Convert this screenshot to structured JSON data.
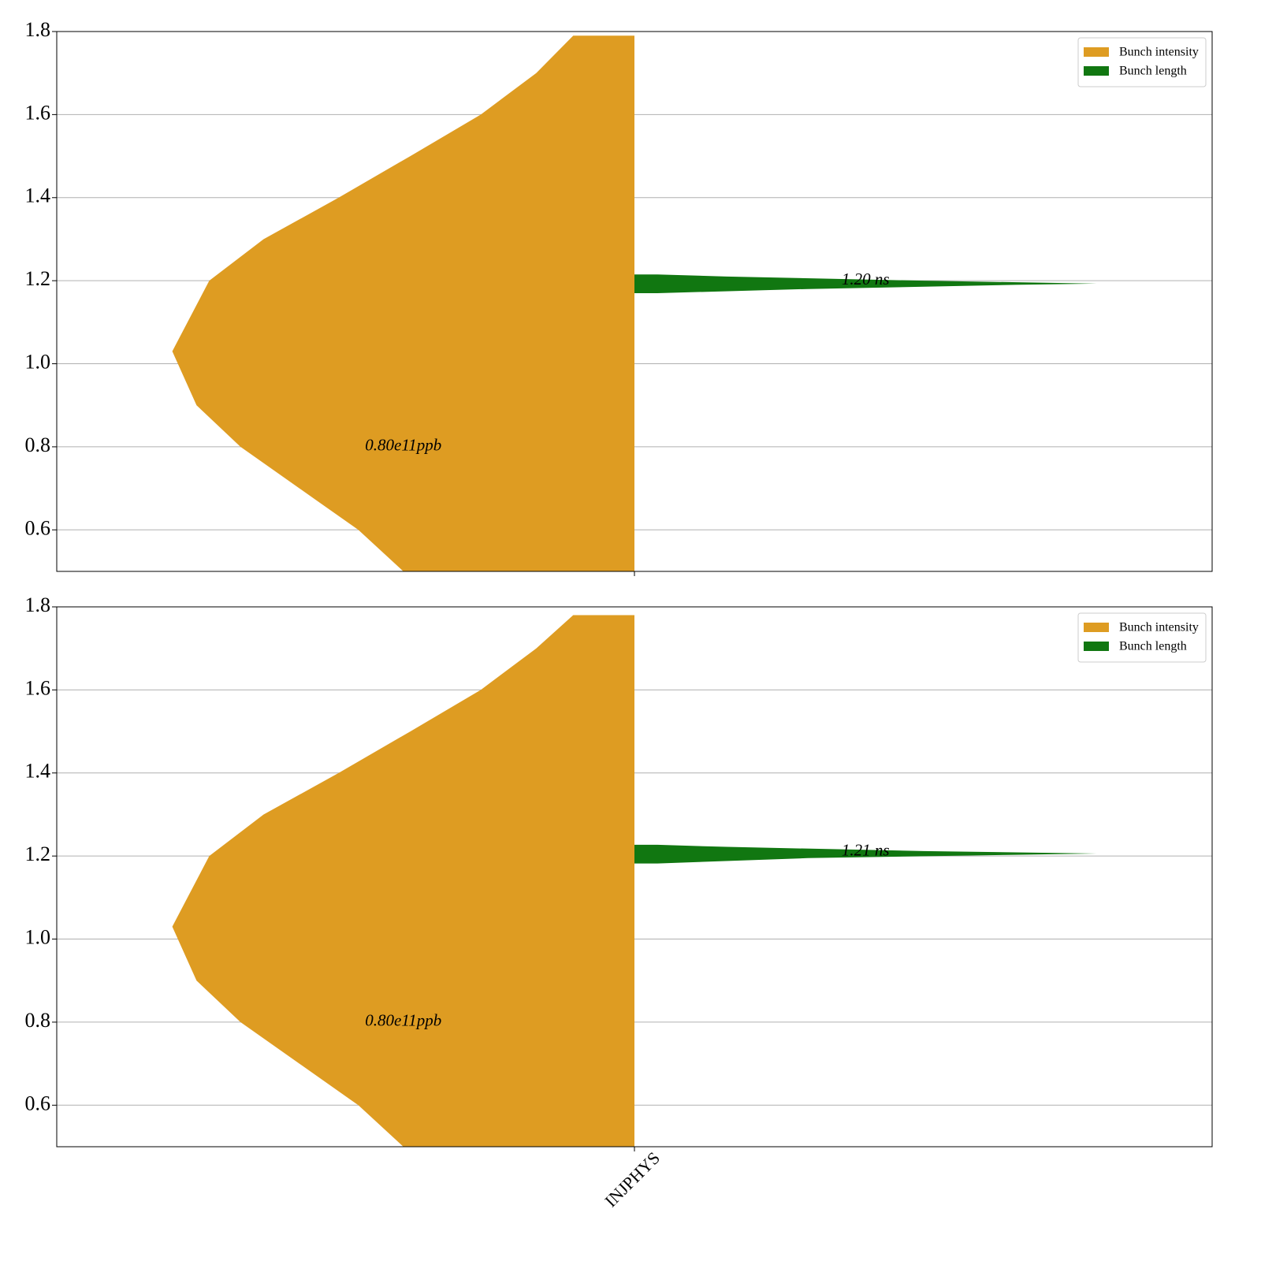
{
  "chart_data": [
    {
      "type": "violin",
      "categories": [
        null
      ],
      "xlim": [
        -0.5,
        0.5
      ],
      "ylim": [
        0.5,
        1.8
      ],
      "yticks": [
        0.6,
        0.8,
        {
          "value": 1,
          "label": "1.0"
        },
        1.2,
        1.4,
        1.6,
        1.8
      ],
      "grid": "y",
      "legend": "upper right",
      "series": [
        {
          "name": "Bunch intensity",
          "color": "#de9c22",
          "side": "left",
          "y": [
            0.5,
            0.6,
            0.8,
            0.9,
            1.03,
            1.2,
            1.3,
            1.4,
            1.5,
            1.6,
            1.7,
            1.79
          ],
          "width": [
            0.2,
            0.239,
            0.341,
            0.379,
            0.4,
            0.368,
            0.321,
            0.256,
            0.194,
            0.133,
            0.085,
            0.053
          ],
          "annotation": {
            "text": "0.80e11ppb",
            "value": 0.8
          }
        },
        {
          "name": "Bunch length",
          "color": "#117711",
          "side": "right",
          "y": [
            1.17,
            1.18,
            1.19,
            1.193,
            1.2,
            1.21,
            1.215
          ],
          "width": [
            0.02,
            0.15,
            0.33,
            0.4,
            0.25,
            0.08,
            0.02
          ],
          "annotation": {
            "text": "1.20 ns",
            "value": 1.2
          }
        }
      ]
    },
    {
      "type": "violin",
      "categories": [
        "INJPHYS"
      ],
      "xlim": [
        -0.5,
        0.5
      ],
      "ylim": [
        0.5,
        1.8
      ],
      "yticks": [
        0.6,
        0.8,
        {
          "value": 1,
          "label": "1.0"
        },
        1.2,
        1.4,
        1.6,
        1.8
      ],
      "grid": "y",
      "legend": "upper right",
      "series": [
        {
          "name": "Bunch intensity",
          "color": "#de9c22",
          "side": "left",
          "y": [
            0.5,
            0.6,
            0.8,
            0.9,
            1.03,
            1.2,
            1.3,
            1.4,
            1.5,
            1.6,
            1.7,
            1.78
          ],
          "width": [
            0.2,
            0.239,
            0.341,
            0.379,
            0.4,
            0.368,
            0.321,
            0.256,
            0.194,
            0.133,
            0.085,
            0.053
          ],
          "annotation": {
            "text": "0.80e11ppb",
            "value": 0.8
          }
        },
        {
          "name": "Bunch length",
          "color": "#117711",
          "side": "right",
          "y": [
            1.182,
            1.195,
            1.203,
            1.206,
            1.212,
            1.222,
            1.227
          ],
          "width": [
            0.02,
            0.15,
            0.33,
            0.4,
            0.25,
            0.08,
            0.02
          ],
          "annotation": {
            "text": "1.21 ns",
            "value": 1.21
          }
        }
      ]
    }
  ]
}
